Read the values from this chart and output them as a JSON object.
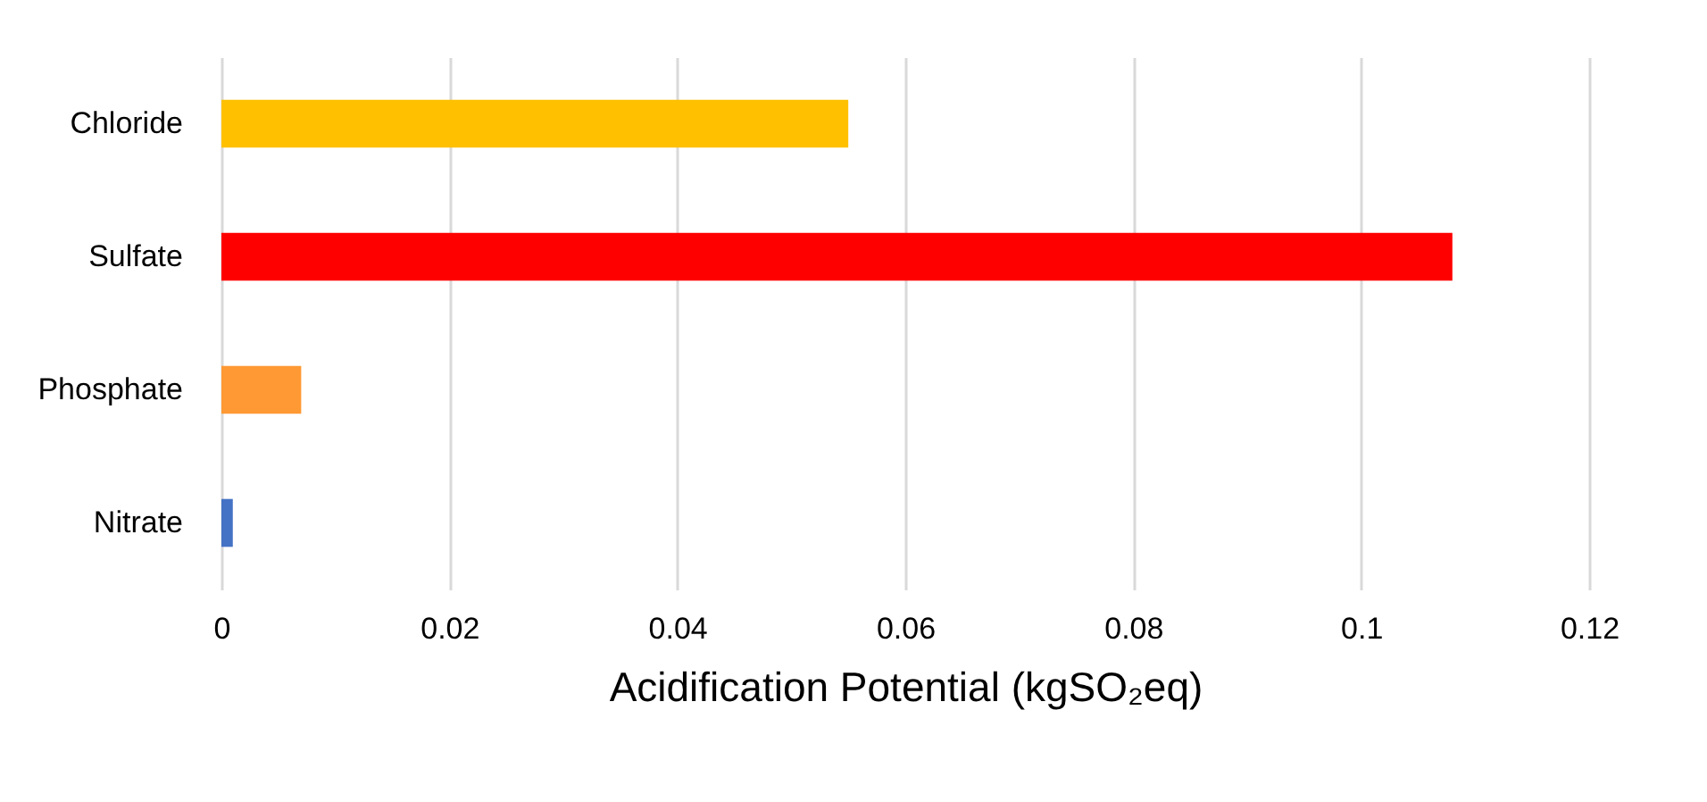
{
  "chart_data": {
    "type": "bar",
    "orientation": "horizontal",
    "xlabel": "Acidification Potential  (kgSO₂eq)",
    "categories": [
      "Chloride",
      "Sulfate",
      "Phosphate",
      "Nitrate"
    ],
    "values": [
      0.055,
      0.108,
      0.007,
      0.001
    ],
    "colors": [
      "#ffc000",
      "#ff0000",
      "#ff9933",
      "#4472c4"
    ],
    "xlim": [
      0,
      0.12
    ],
    "xticks": [
      0,
      0.02,
      0.04,
      0.06,
      0.08,
      0.1,
      0.12
    ],
    "grid": "x",
    "legend": false
  }
}
